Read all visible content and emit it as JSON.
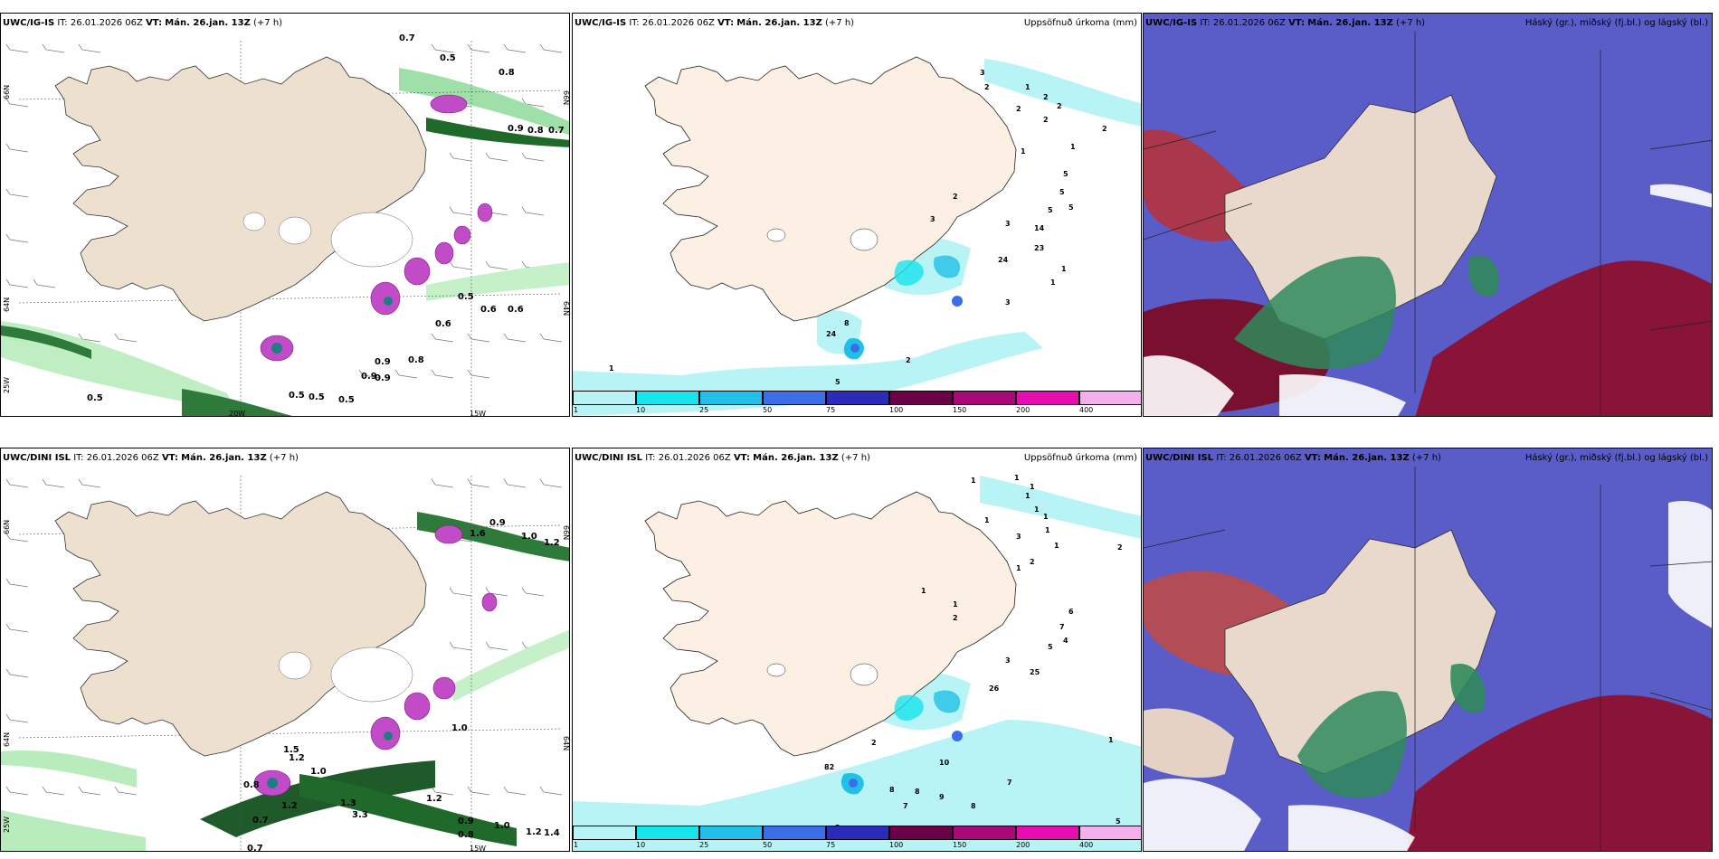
{
  "panels": {
    "ig_wind": {
      "model": "UWC/IG-IS",
      "it_label": "IT:",
      "it_value": "26.01.2026 06Z",
      "vt_label": "VT:",
      "vt_value": "Mán. 26.jan. 13Z",
      "lead": "(+7 h)",
      "lat_labels": [
        "66N",
        "64N",
        "25W",
        "20W",
        "15W",
        "64N",
        "66N"
      ],
      "values": [
        "0.7",
        "0.5",
        "0.8",
        "0.9",
        "0.8",
        "0.7",
        "0.5",
        "0.6",
        "0.6",
        "0.6",
        "0.9",
        "0.8",
        "0.9",
        "0.9",
        "0.5",
        "0.5",
        "0.5",
        "0.5"
      ]
    },
    "ig_precip": {
      "model": "UWC/IG-IS",
      "it_label": "IT:",
      "it_value": "26.01.2026 06Z",
      "vt_label": "VT:",
      "vt_value": "Mán. 26.jan. 13Z",
      "lead": "(+7 h)",
      "title": "Uppsöfnuð úrkoma (mm)",
      "values": [
        "3",
        "2",
        "1",
        "2",
        "2",
        "2",
        "2",
        "2",
        "1",
        "1",
        "5",
        "5",
        "5",
        "5",
        "2",
        "3",
        "3",
        "14",
        "23",
        "24",
        "1",
        "1",
        "3",
        "8",
        "24",
        "2",
        "5",
        "1"
      ]
    },
    "ig_cloud": {
      "model": "UWC/IG-IS",
      "it_label": "IT:",
      "it_value": "26.01.2026 06Z",
      "vt_label": "VT:",
      "vt_value": "Mán. 26.jan. 13Z",
      "lead": "(+7 h)",
      "title": "Háský (gr.), miðský (fj.bl.) og lágský (bl.)"
    },
    "dini_wind": {
      "model": "UWC/DINI ISL",
      "it_label": "IT:",
      "it_value": "26.01.2026 06Z",
      "vt_label": "VT:",
      "vt_value": "Mán. 26.jan. 13Z",
      "lead": "(+7 h)",
      "lat_labels": [
        "66N",
        "64N",
        "25W",
        "15W",
        "64N",
        "66N"
      ],
      "values": [
        "0.9",
        "1.0",
        "1.2",
        "1.6",
        "1.0",
        "1.2",
        "1.5",
        "1.0",
        "0.8",
        "1.2",
        "1.3",
        "1.2",
        "0.7",
        "0.7",
        "0.9",
        "0.8",
        "1.0",
        "1.2",
        "1.4",
        "3.3"
      ]
    },
    "dini_precip": {
      "model": "UWC/DINI ISL",
      "it_label": "IT:",
      "it_value": "26.01.2026 06Z",
      "vt_label": "VT:",
      "vt_value": "Mán. 26.jan. 13Z",
      "lead": "(+7 h)",
      "title": "Uppsöfnuð úrkoma (mm)",
      "values": [
        "1",
        "1",
        "1",
        "1",
        "1",
        "1",
        "1",
        "2",
        "1",
        "1",
        "1",
        "3",
        "2",
        "1",
        "6",
        "7",
        "4",
        "5",
        "3",
        "25",
        "26",
        "1",
        "82",
        "2",
        "2",
        "10",
        "8",
        "8",
        "7",
        "9",
        "8",
        "7",
        "3",
        "5",
        "1"
      ]
    },
    "dini_cloud": {
      "model": "UWC/DINI ISL",
      "it_label": "IT:",
      "it_value": "26.01.2026 06Z",
      "vt_label": "VT:",
      "vt_value": "Mán. 26.jan. 13Z",
      "lead": "(+7 h)",
      "title": "Háský (gr.), miðský (fj.bl.) og lágský (bl.)"
    }
  },
  "colorbar": {
    "labels": [
      "1",
      "10",
      "25",
      "50",
      "75",
      "100",
      "150",
      "200",
      "400"
    ],
    "colors": [
      "#b8f4f6",
      "#18e4ec",
      "#22c0e8",
      "#3b6ee6",
      "#2c2ab8",
      "#6a0048",
      "#a8087a",
      "#e60cb0",
      "#f4b0ec"
    ]
  }
}
